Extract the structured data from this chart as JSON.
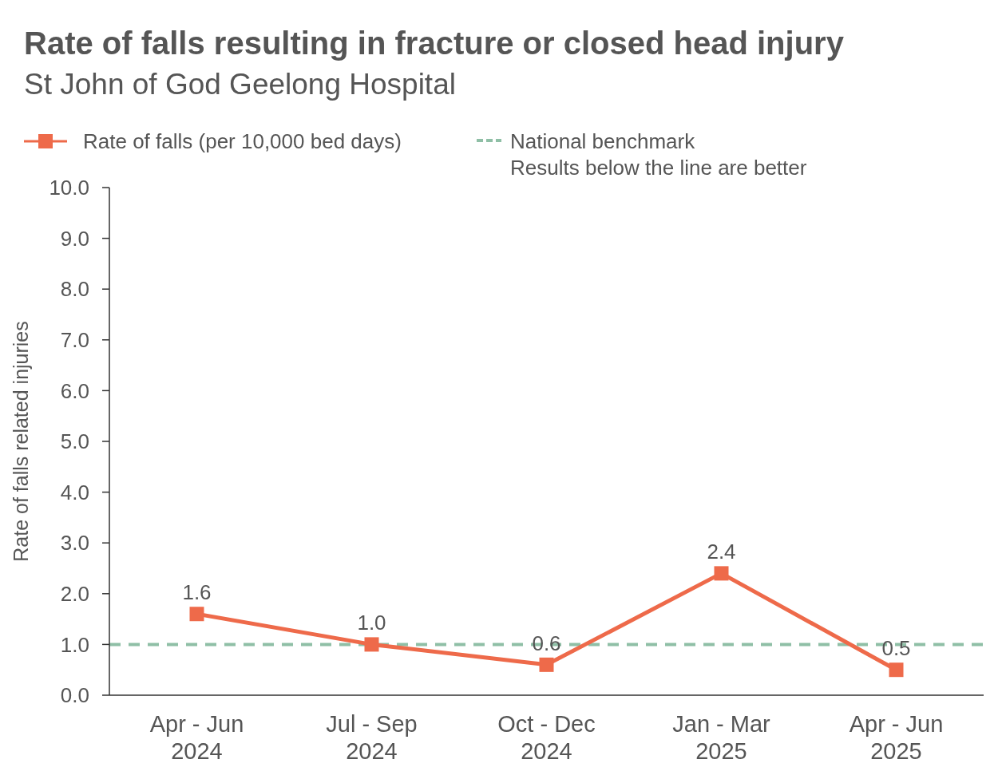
{
  "chart_data": {
    "type": "line",
    "title": "Rate of falls resulting in fracture or closed head injury",
    "subtitle": "St John of God Geelong Hospital",
    "ylabel": "Rate of falls related injuries",
    "categories": [
      "Apr - Jun\n2024",
      "Jul - Sep\n2024",
      "Oct - Dec\n2024",
      "Jan - Mar\n2025",
      "Apr - Jun\n2025"
    ],
    "series": [
      {
        "name": "Rate of falls (per 10,000 bed days)",
        "color": "#ee6a4a",
        "values": [
          1.6,
          1.0,
          0.6,
          2.4,
          0.5
        ],
        "value_labels": [
          "1.6",
          "1.0",
          "0.6",
          "2.4",
          "0.5"
        ]
      }
    ],
    "ylim": [
      0,
      10
    ],
    "yticks": [
      {
        "value": 0,
        "label": "0.0"
      },
      {
        "value": 1,
        "label": "1.0"
      },
      {
        "value": 2,
        "label": "2.0"
      },
      {
        "value": 3,
        "label": "3.0"
      },
      {
        "value": 4,
        "label": "4.0"
      },
      {
        "value": 5,
        "label": "5.0"
      },
      {
        "value": 6,
        "label": "6.0"
      },
      {
        "value": 7,
        "label": "7.0"
      },
      {
        "value": 8,
        "label": "8.0"
      },
      {
        "value": 9,
        "label": "9.0"
      },
      {
        "value": 10,
        "label": "10.0"
      }
    ],
    "ref_lines": [
      {
        "axis": "y",
        "value": 1,
        "label": "National benchmark\nResults below the line are better",
        "color": "#8fbfa6",
        "line_style": "dashed"
      }
    ],
    "marker": "square",
    "line_style": "solid",
    "grid": false,
    "legend": "top left"
  }
}
